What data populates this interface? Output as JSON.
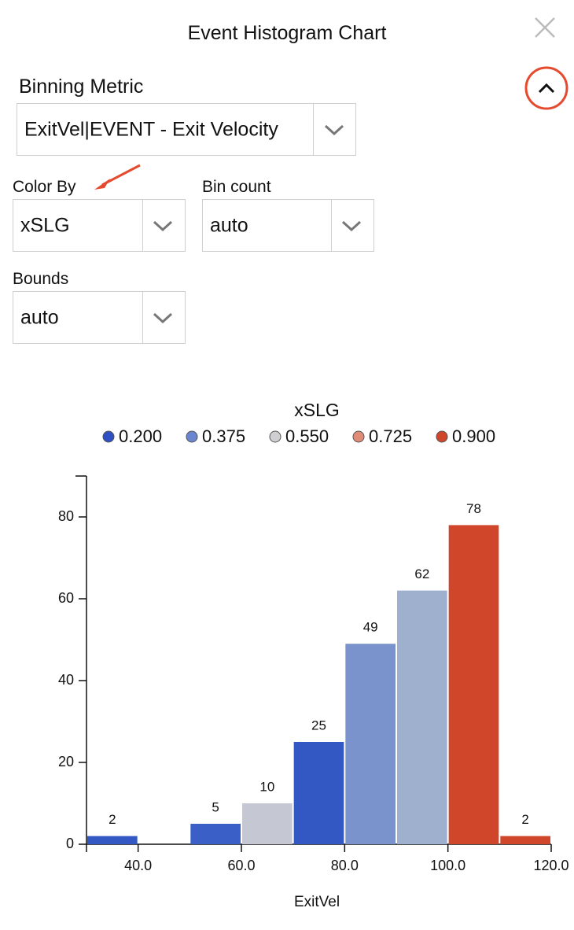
{
  "header": {
    "title": "Event Histogram Chart"
  },
  "controls": {
    "binning_metric": {
      "label": "Binning Metric",
      "value": "ExitVel|EVENT - Exit Velocity"
    },
    "color_by": {
      "label": "Color By",
      "value": "xSLG"
    },
    "bin_count": {
      "label": "Bin count",
      "value": "auto"
    },
    "bounds": {
      "label": "Bounds",
      "value": "auto"
    }
  },
  "chart_data": {
    "type": "histogram",
    "legend_title": "xSLG",
    "legend": [
      {
        "name": "0.200",
        "color": "#2f4fc4"
      },
      {
        "name": "0.375",
        "color": "#6a86d0"
      },
      {
        "name": "0.550",
        "color": "#cfcfd1"
      },
      {
        "name": "0.725",
        "color": "#e08a78"
      },
      {
        "name": "0.900",
        "color": "#d0462a"
      }
    ],
    "bins": [
      30,
      40,
      50,
      60,
      70,
      80,
      90,
      100,
      110,
      120
    ],
    "values": [
      2,
      0,
      5,
      10,
      25,
      49,
      62,
      78,
      2
    ],
    "colors": [
      "#3358c4",
      null,
      "#3a5fc6",
      "#c5c7d3",
      "#3358c4",
      "#7a93cc",
      "#9fb0cf",
      "#d0462a",
      "#d0462a"
    ],
    "x_label": "ExitVel",
    "xlim": [
      30,
      120
    ],
    "xticks": [
      {
        "value": 40,
        "label": "40.0"
      },
      {
        "value": 60,
        "label": "60.0"
      },
      {
        "value": 80,
        "label": "80.0"
      },
      {
        "value": 100,
        "label": "100.0"
      },
      {
        "value": 120,
        "label": "120.0"
      }
    ],
    "ylim": [
      0,
      90
    ],
    "yticks": [
      0,
      20,
      40,
      60,
      80
    ]
  }
}
